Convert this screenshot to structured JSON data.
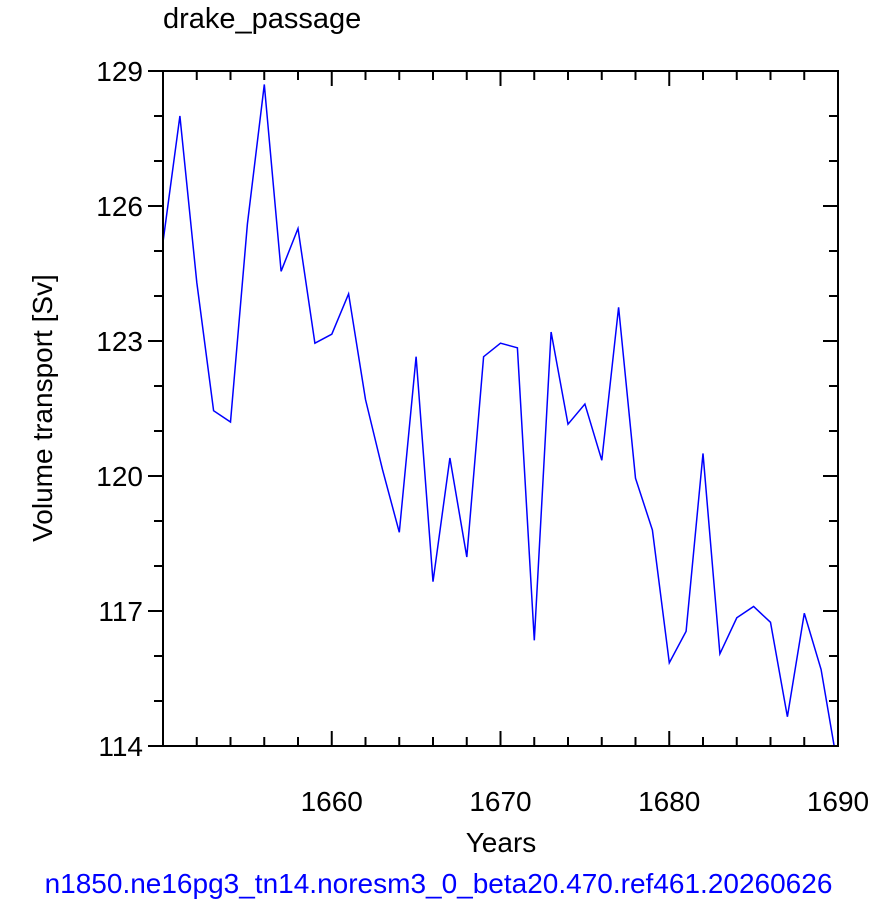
{
  "chart_data": {
    "type": "line",
    "title": "drake_passage",
    "xlabel": "Years",
    "ylabel": "Volume transport [Sv]",
    "xlim": [
      1650,
      1690
    ],
    "ylim": [
      114,
      129
    ],
    "x_ticks": [
      1660,
      1670,
      1680,
      1690
    ],
    "x_tick_labels": [
      "1660",
      "1670",
      "1680",
      "1690"
    ],
    "y_ticks": [
      114,
      117,
      120,
      123,
      126,
      129
    ],
    "y_tick_labels": [
      "114",
      "117",
      "120",
      "123",
      "126",
      "129"
    ],
    "grid": false,
    "series": [
      {
        "color": "#0000ff",
        "x": [
          1650,
          1651,
          1652,
          1653,
          1654,
          1655,
          1656,
          1657,
          1658,
          1659,
          1660,
          1661,
          1662,
          1663,
          1664,
          1665,
          1666,
          1667,
          1668,
          1669,
          1670,
          1671,
          1672,
          1673,
          1674,
          1675,
          1676,
          1677,
          1678,
          1679,
          1680,
          1681,
          1682,
          1683,
          1684,
          1685,
          1686,
          1687,
          1688,
          1689,
          1690
        ],
        "y": [
          125.2,
          128.0,
          124.3,
          121.45,
          121.2,
          125.6,
          128.7,
          124.55,
          125.5,
          122.95,
          123.15,
          124.05,
          121.7,
          120.15,
          118.75,
          122.65,
          117.65,
          120.4,
          118.2,
          122.65,
          122.95,
          122.85,
          116.35,
          123.2,
          121.15,
          121.6,
          120.35,
          123.75,
          119.95,
          118.8,
          115.85,
          116.55,
          120.5,
          116.05,
          116.85,
          117.1,
          116.75,
          114.65,
          116.95,
          115.7,
          113.5
        ]
      }
    ]
  },
  "footer_text": "n1850.ne16pg3_tn14.noresm3_0_beta20.470.ref461.20260626"
}
